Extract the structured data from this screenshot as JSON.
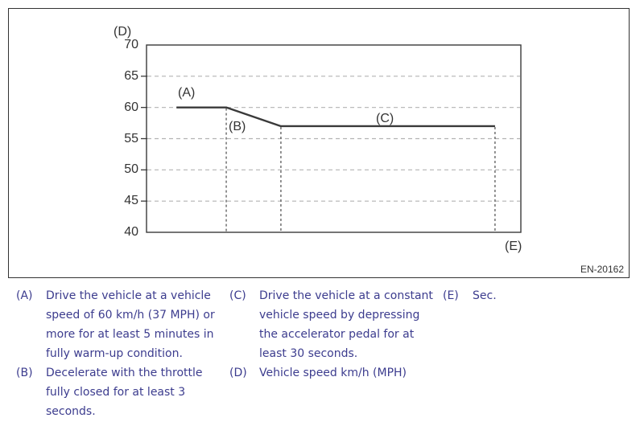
{
  "figure": {
    "code": "EN-20162"
  },
  "chart_data": {
    "type": "line",
    "title": "",
    "ylabel": "Vehicle speed km/h (MPH)",
    "ylabel_key": "(D)",
    "xlabel": "Sec.",
    "xlabel_key": "(E)",
    "ylim": [
      40,
      70
    ],
    "yticks": [
      70,
      65,
      60,
      55,
      50,
      45,
      40
    ],
    "gridlines_y": [
      65,
      60,
      55,
      50,
      45
    ],
    "grid": true,
    "legend_position": "none",
    "series": [
      {
        "name": "vehicle-speed",
        "x_unit": "fraction of plot width (no x scale shown)",
        "points": [
          {
            "x": 0.08,
            "y": 60
          },
          {
            "x": 0.213,
            "y": 60
          },
          {
            "x": 0.359,
            "y": 57
          },
          {
            "x": 0.931,
            "y": 57
          }
        ]
      }
    ],
    "ref_lines": [
      {
        "x": 0.213,
        "from_y": 60
      },
      {
        "x": 0.359,
        "from_y": 57
      },
      {
        "x": 0.931,
        "from_y": 57
      }
    ],
    "segment_labels": [
      {
        "key": "(A)",
        "segment": "constant 60 km/h"
      },
      {
        "key": "(B)",
        "segment": "deceleration from 60 to 57"
      },
      {
        "key": "(C)",
        "segment": "constant 57 km/h"
      }
    ],
    "colors": {
      "line": "#3a3a3a",
      "grid": "#b3b3b3",
      "ref_line": "#5a5a5a",
      "axis": "#3a3a3a",
      "chart_text": "#333333"
    }
  },
  "legend_notes": {
    "text_color": "#3c3c8e",
    "items": [
      {
        "id": "(A)",
        "text": "Drive the vehicle at a vehicle speed of 60 km/h (37 MPH) or more for at least 5 minutes in fully warm-up condition."
      },
      {
        "id": "(B)",
        "text": "Decelerate with the throttle fully closed for at least 3 seconds."
      },
      {
        "id": "(C)",
        "text": "Drive the vehicle at a constant vehicle speed by depressing the accelerator pedal for at least 30 seconds."
      },
      {
        "id": "(D)",
        "text": "Vehicle speed km/h (MPH)"
      },
      {
        "id": "(E)",
        "text": "Sec."
      }
    ]
  }
}
